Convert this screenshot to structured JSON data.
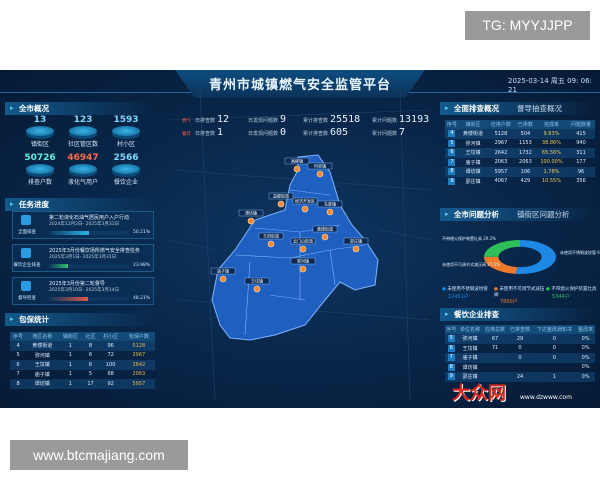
{
  "overlay": {
    "tg": "TG: MYYJJPP",
    "site": "www.btcmajiang.com"
  },
  "header": {
    "title": "青州市城镇燃气安全监管平台",
    "datetime": "2025-03-14 周五 09: 06: 21"
  },
  "topstats": {
    "tags": [
      "燃气",
      "餐饮"
    ],
    "rows": [
      [
        {
          "label": "日排查数",
          "value": "12"
        },
        {
          "label": "日发现问题数",
          "value": "9"
        },
        {
          "label": "累计排查数",
          "value": "25518"
        },
        {
          "label": "累计问题数",
          "value": "13193"
        }
      ],
      [
        {
          "label": "日排查数",
          "value": "1"
        },
        {
          "label": "日发现问题数",
          "value": "0"
        },
        {
          "label": "累计排查数",
          "value": "605"
        },
        {
          "label": "累计问题数",
          "value": "7"
        }
      ]
    ]
  },
  "overview": {
    "title": "全市概况",
    "items": [
      {
        "value": "13",
        "label": "镇街区",
        "color": "#7fd9ff"
      },
      {
        "value": "123",
        "label": "社区管区数",
        "color": "#7fd9ff"
      },
      {
        "value": "1593",
        "label": "村小区",
        "color": "#7fd9ff"
      },
      {
        "value": "50726",
        "label": "排查户数",
        "color": "#62f0d8"
      },
      {
        "value": "46947",
        "label": "液化气用户",
        "color": "#ff6a4a"
      },
      {
        "value": "2566",
        "label": "餐饮企业",
        "color": "#7fd9ff"
      }
    ]
  },
  "tasks": {
    "title": "任务进度",
    "items": [
      {
        "icon_label": "全面排查",
        "title": "第二轮液化石油气居民用户入户行动",
        "date": "2024年12月2日- 2025年3月31日",
        "progress": "50.21%",
        "percent": 50.21,
        "color": "#2cb6e8"
      },
      {
        "icon_label": "餐饮企业排查",
        "title": "2025年3月份餐饮场所燃气安全排查任务",
        "date": "2025年3月1日- 2025年3月31日",
        "progress": "23.98%",
        "percent": 23.98,
        "color": "#2ec26a"
      },
      {
        "icon_label": "督导检查",
        "title": "2025年3月份第二轮督导",
        "date": "2025年3月10日- 2025年3月14日",
        "progress": "48.21%",
        "percent": 48.21,
        "color": "#e0584a"
      }
    ]
  },
  "baobao": {
    "title": "包保统计",
    "headers": [
      "序号",
      "地区名称",
      "镇街区",
      "社区",
      "村小区",
      "包保户数"
    ],
    "rows": [
      [
        "4",
        "黄楼街道",
        "1",
        "8",
        "96",
        "5128"
      ],
      [
        "5",
        "弥河镇",
        "1",
        "6",
        "72",
        "2967"
      ],
      [
        "6",
        "王坟镇",
        "1",
        "6",
        "100",
        "2642"
      ],
      [
        "7",
        "庙子镇",
        "1",
        "5",
        "68",
        "2063"
      ],
      [
        "8",
        "谭坊镇",
        "1",
        "17",
        "92",
        "5957"
      ]
    ]
  },
  "inspection": {
    "title": "全面排查概况",
    "subtitle": "督导抽查概况",
    "headers": [
      "序号",
      "镇街区",
      "应排户数",
      "已排数",
      "完成率",
      "问题数量"
    ],
    "rows": [
      [
        "4",
        "黄楼街道",
        "5128",
        "504",
        "9.83%",
        "415"
      ],
      [
        "5",
        "弥河镇",
        "2967",
        "1153",
        "38.86%",
        "940"
      ],
      [
        "6",
        "王坟镇",
        "2642",
        "1732",
        "65.56%",
        "311"
      ],
      [
        "7",
        "庙子镇",
        "2063",
        "2063",
        "100.00%",
        "177"
      ],
      [
        "8",
        "谭坊镇",
        "5957",
        "106",
        "1.78%",
        "96"
      ],
      [
        "9",
        "邵庄镇",
        "4067",
        "429",
        "10.55%",
        "356"
      ]
    ]
  },
  "problems": {
    "title": "全市问题分析",
    "subtitle": "镇街区问题分析",
    "slices": [
      {
        "label": "未使用不锈钢波纹管 61.3%",
        "legend": "未使用不锈钢波纹管",
        "count": "12451户",
        "pct": 61.3,
        "color": "#1e88e5"
      },
      {
        "label": "未使用不可调节式减压阀 27.5%",
        "legend": "未使用不可调节式减压阀",
        "count": "7860户",
        "pct": 27.5,
        "color": "#f07a2a"
      },
      {
        "label": "不带熄火保护装置灶具 29.2%",
        "legend": "不带熄火保护装置灶具",
        "count": "5344户",
        "pct": 29.2,
        "color": "#2fbf5a"
      }
    ]
  },
  "catering": {
    "title": "餐饮企业排查",
    "headers": [
      "序号",
      "单位名称",
      "应排总数",
      "已排查数",
      "下达整改通知书",
      "整改率"
    ],
    "rows": [
      [
        "5",
        "弥河镇",
        "67",
        "29",
        "0",
        "0%"
      ],
      [
        "6",
        "王坟镇",
        "71",
        "0",
        "0",
        "0%"
      ],
      [
        "7",
        "庙子镇",
        "",
        "0",
        "0",
        "0%"
      ],
      [
        "8",
        "谭坊镇",
        "",
        "",
        "",
        "0%"
      ],
      [
        "9",
        "邵庄镇",
        "",
        "24",
        "1",
        "0%"
      ]
    ]
  },
  "map": {
    "towns": [
      "高柳镇",
      "何官镇",
      "益都街道",
      "经济开发区",
      "东夏镇",
      "谭坊镇",
      "黄楼街道",
      "邵庄镇",
      "王府街道",
      "云门山街道",
      "弥河镇",
      "庙子镇",
      "王坟镇"
    ],
    "fill": "#1f5fc0"
  },
  "watermark": {
    "logo": "大众网",
    "url": "www.dzwww.com"
  }
}
